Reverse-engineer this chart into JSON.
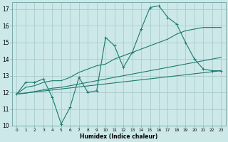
{
  "xlabel": "Humidex (Indice chaleur)",
  "xlim": [
    -0.5,
    23.5
  ],
  "ylim": [
    10,
    17.4
  ],
  "xticks": [
    0,
    1,
    2,
    3,
    4,
    5,
    6,
    7,
    8,
    9,
    10,
    11,
    12,
    13,
    14,
    15,
    16,
    17,
    18,
    19,
    20,
    21,
    22,
    23
  ],
  "yticks": [
    10,
    11,
    12,
    13,
    14,
    15,
    16,
    17
  ],
  "bg_color": "#cce8e8",
  "grid_color": "#aacccc",
  "line_color": "#1a7a6e",
  "series": {
    "main": {
      "x": [
        0,
        1,
        2,
        3,
        4,
        5,
        6,
        7,
        8,
        9,
        10,
        11,
        12,
        13,
        14,
        15,
        16,
        17,
        18,
        19,
        20,
        21,
        22,
        23
      ],
      "y": [
        11.9,
        12.6,
        12.6,
        12.8,
        11.7,
        10.1,
        11.1,
        12.9,
        12.0,
        12.1,
        15.3,
        14.8,
        13.5,
        14.4,
        15.8,
        17.1,
        17.2,
        16.5,
        16.1,
        15.0,
        14.0,
        13.4,
        13.3,
        13.3
      ]
    },
    "upper": {
      "x": [
        0,
        1,
        2,
        3,
        4,
        5,
        6,
        7,
        8,
        9,
        10,
        11,
        12,
        13,
        14,
        15,
        16,
        17,
        18,
        19,
        20,
        21,
        22,
        23
      ],
      "y": [
        11.9,
        12.3,
        12.4,
        12.6,
        12.7,
        12.7,
        12.9,
        13.2,
        13.4,
        13.6,
        13.7,
        14.0,
        14.2,
        14.4,
        14.6,
        14.8,
        15.0,
        15.2,
        15.5,
        15.7,
        15.8,
        15.9,
        15.9,
        15.9
      ]
    },
    "lower": {
      "x": [
        0,
        1,
        2,
        3,
        4,
        5,
        6,
        7,
        8,
        9,
        10,
        11,
        12,
        13,
        14,
        15,
        16,
        17,
        18,
        19,
        20,
        21,
        22,
        23
      ],
      "y": [
        11.9,
        11.95,
        12.05,
        12.15,
        12.25,
        12.3,
        12.4,
        12.5,
        12.6,
        12.7,
        12.8,
        12.9,
        13.0,
        13.1,
        13.2,
        13.3,
        13.4,
        13.5,
        13.6,
        13.7,
        13.8,
        13.9,
        14.0,
        14.1
      ]
    },
    "trend": {
      "x": [
        0,
        23
      ],
      "y": [
        11.9,
        13.3
      ]
    }
  }
}
